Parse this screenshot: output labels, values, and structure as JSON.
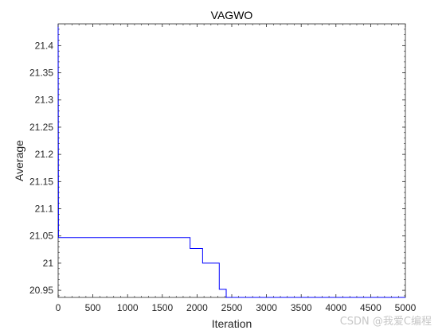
{
  "chart_data": {
    "type": "line",
    "title": "VAGWO",
    "xlabel": "Iteration",
    "ylabel": "Average",
    "xlim": [
      0,
      5000
    ],
    "ylim": [
      20.937,
      21.44
    ],
    "xticks": [
      0,
      500,
      1000,
      1500,
      2000,
      2500,
      3000,
      3500,
      4000,
      4500,
      5000
    ],
    "xtick_labels": [
      "0",
      "500",
      "1000",
      "1500",
      "2000",
      "2500",
      "3000",
      "3500",
      "4000",
      "4500",
      "5000"
    ],
    "yticks": [
      20.95,
      21,
      21.05,
      21.1,
      21.15,
      21.2,
      21.25,
      21.3,
      21.35,
      21.4
    ],
    "ytick_labels": [
      "20.95",
      "21",
      "21.05",
      "21.1",
      "21.15",
      "21.2",
      "21.25",
      "21.3",
      "21.35",
      "21.4"
    ],
    "grid": false,
    "series": [
      {
        "color": "#0000ff",
        "x": [
          0,
          5,
          5,
          1900,
          1900,
          2080,
          2080,
          2320,
          2320,
          2420,
          2420,
          5000
        ],
        "y": [
          21.44,
          21.05,
          21.047,
          21.047,
          21.027,
          21.027,
          21.0,
          21.0,
          20.952,
          20.952,
          20.937,
          20.937
        ]
      }
    ]
  },
  "watermark": "CSDN @我爱C编程"
}
